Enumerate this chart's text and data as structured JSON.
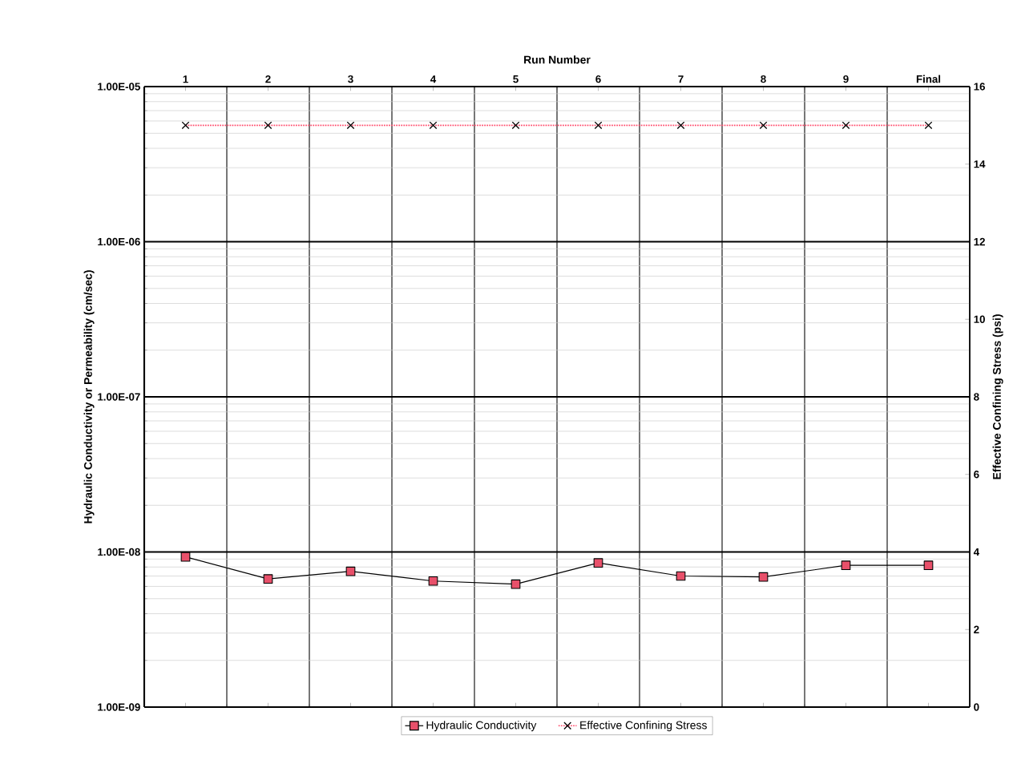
{
  "chart_data": {
    "type": "line",
    "xlabel": "Run Number",
    "ylabel": "Hydraulic Conductivity or Permeability (cm/sec)",
    "y2label": "Effective Confining Stress (psi)",
    "categories": [
      "1",
      "2",
      "3",
      "4",
      "5",
      "6",
      "7",
      "8",
      "9",
      "Final"
    ],
    "series": [
      {
        "name": "Hydraulic Conductivity",
        "color": "#e8506a",
        "marker": "square",
        "line_style": "solid",
        "values": [
          9.3e-09,
          6.7e-09,
          7.5e-09,
          6.5e-09,
          6.2e-09,
          8.5e-09,
          7e-09,
          6.9e-09,
          8.2e-09,
          8.2e-09
        ]
      },
      {
        "name": "Effective Confining Stress",
        "color": "#ff4d6d",
        "marker": "cross",
        "line_style": "dotted",
        "axis": "y2",
        "values": [
          15,
          15,
          15,
          15,
          15,
          15,
          15,
          15,
          15,
          15
        ]
      }
    ],
    "log": "y",
    "ylim": [
      1e-09,
      1e-05
    ],
    "yticks": [
      {
        "value": 1e-09,
        "label": "1.00E-09"
      },
      {
        "value": 1e-08,
        "label": "1.00E-08"
      },
      {
        "value": 1e-07,
        "label": "1.00E-07"
      },
      {
        "value": 1e-06,
        "label": "1.00E-06"
      },
      {
        "value": 1e-05,
        "label": "1.00E-05"
      }
    ],
    "y2lim": [
      0,
      16
    ],
    "y2ticks": [
      0,
      2,
      4,
      6,
      8,
      10,
      12,
      14,
      16
    ],
    "grid": true,
    "legend": "bottom"
  }
}
